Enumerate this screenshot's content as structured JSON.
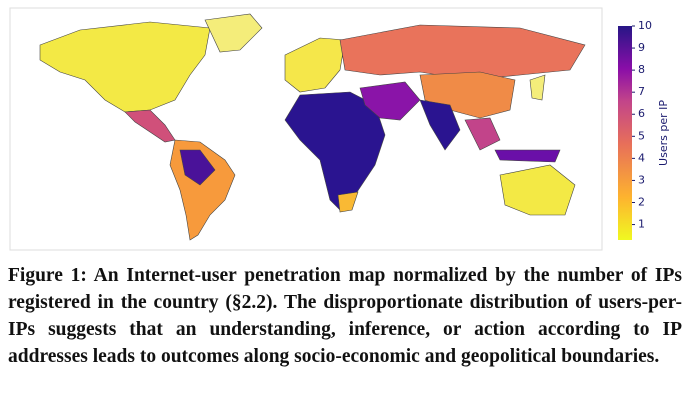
{
  "figure": {
    "colorbar": {
      "label": "Users per IP",
      "lim": [
        0.3,
        10
      ],
      "ticks": [
        1,
        2,
        3,
        4,
        5,
        6,
        7,
        8,
        9,
        10
      ]
    }
  },
  "caption": {
    "label": "Figure 1:",
    "text": "An Internet-user penetration map normalized by the number of IPs registered in the country (§2.2). The disproportionate distribution of users-per-IPs suggests that an understanding, inference, or action according to IP addresses leads to outcomes along socio-economic and geopolitical boundaries."
  }
}
